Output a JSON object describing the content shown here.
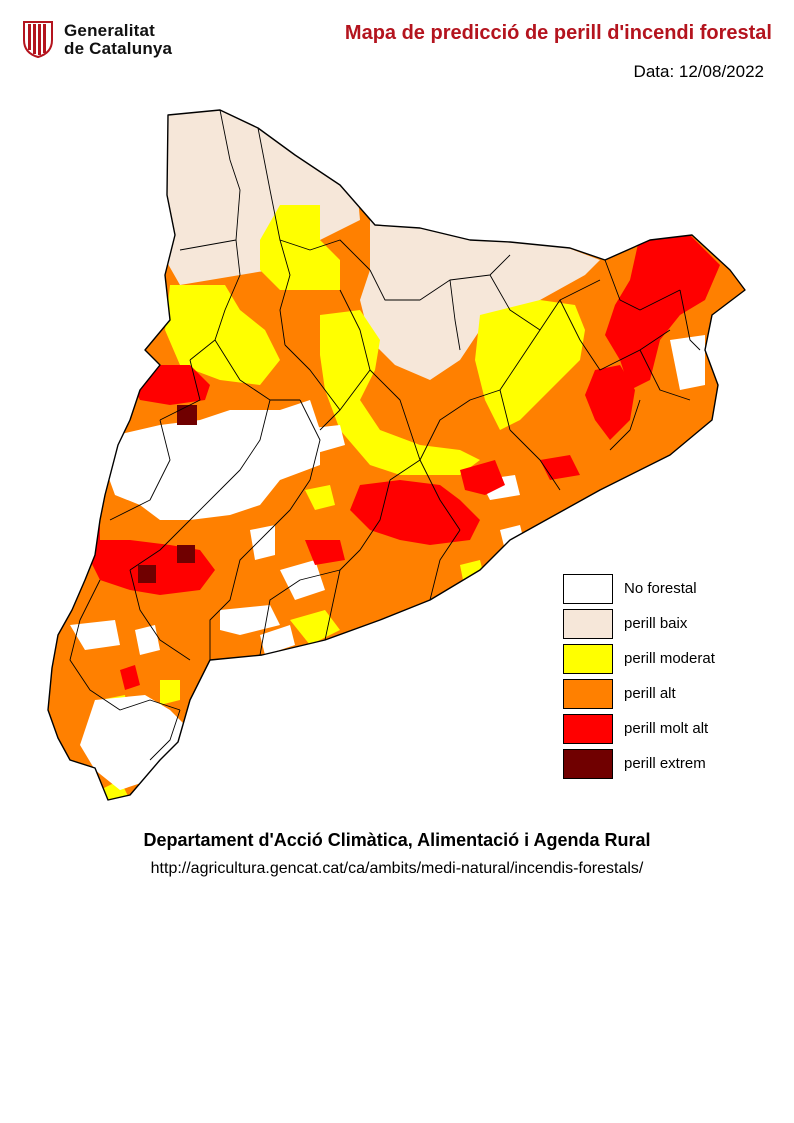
{
  "header": {
    "logo_line1": "Generalitat",
    "logo_line2": "de Catalunya",
    "title": "Mapa de predicció de perill d'incendi forestal",
    "date": "Data: 12/08/2022"
  },
  "legend": [
    {
      "label": "No forestal",
      "color": "#ffffff"
    },
    {
      "label": "perill baix",
      "color": "#f6e7d9"
    },
    {
      "label": "perill moderat",
      "color": "#ffff00"
    },
    {
      "label": "perill alt",
      "color": "#ff8000"
    },
    {
      "label": "perill molt alt",
      "color": "#ff0000"
    },
    {
      "label": "perill extrem",
      "color": "#700000"
    }
  ],
  "footer": {
    "department": "Departament d'Acció Climàtica, Alimentació i Agenda Rural",
    "url": "http://agricultura.gencat.cat/ca/ambits/medi-natural/incendis-forestals/"
  }
}
